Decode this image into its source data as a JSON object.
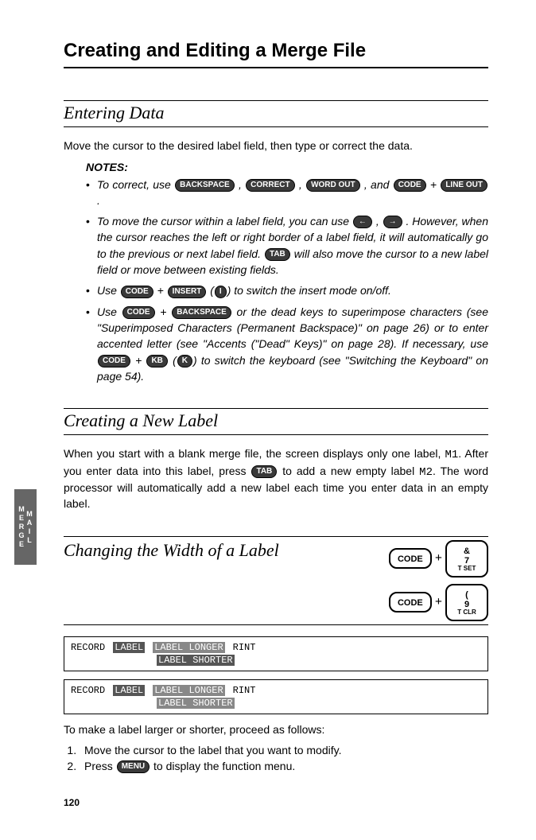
{
  "page": {
    "main_title": "Creating and Editing a Merge File",
    "side_tab": "MAIL MERGE",
    "page_number": "120"
  },
  "section1": {
    "title": "Entering Data",
    "intro": "Move the cursor to the desired label field, then type or correct the data.",
    "notes_heading": "NOTES:",
    "bullets": {
      "b1_pre": "To correct, use ",
      "b1_mid1": " , ",
      "b1_mid2": " , ",
      "b1_mid3": " , and ",
      "b1_mid4": " + ",
      "b1_end": " .",
      "b2_pre": "To move the cursor within a label field, you can use ",
      "b2_mid1": " , ",
      "b2_mid2": " . However, when the cursor reaches the left or right border of a label field, it will automatically go to the previous or next label field. ",
      "b2_end": " will also move the cursor to a new label field or move between existing fields.",
      "b3_pre": "Use ",
      "b3_mid1": " + ",
      "b3_mid2": " (",
      "b3_mid3": ") to switch the insert mode on/off.",
      "b4_pre": "Use ",
      "b4_mid1": " + ",
      "b4_mid2": " or the dead keys to superimpose characters (see \"Superimposed Characters (Permanent Backspace)\" on page 26) or to enter accented letter (see \"Accents (\"Dead\" Keys)\" on page 28). If necessary, use ",
      "b4_mid3": " + ",
      "b4_mid4": " (",
      "b4_mid5": ") to switch the keyboard (see \"Switching the Keyboard\" on page 54)."
    },
    "keys": {
      "backspace": "BACKSPACE",
      "correct": "CORRECT",
      "wordout": "WORD OUT",
      "code": "CODE",
      "lineout": "LINE OUT",
      "left": "←",
      "right": "→",
      "tab": "TAB",
      "insert": "INSERT",
      "i": "I",
      "kb": "KB",
      "k": "K"
    }
  },
  "section2": {
    "title": "Creating a New Label",
    "body_pre": "When you start with a blank merge file, the screen displays only one label, ",
    "body_m1": "M1",
    "body_mid1": ". After you enter data into this label, press ",
    "body_mid2": " to add a new empty label ",
    "body_m2": "M2",
    "body_end": ". The word processor will automatically add a new label each time you enter data in an empty label.",
    "key_tab": "TAB"
  },
  "section3": {
    "title": "Changing the Width of a Label",
    "big_keys": {
      "code": "CODE",
      "amp": "&",
      "seven": "7",
      "tset": "T SET",
      "nine": "9",
      "tclr": "T CLR"
    },
    "record1": {
      "col1": "RECORD",
      "col2": "LABEL",
      "col3": "LABEL LONGER",
      "col4": "RINT",
      "line2": "LABEL SHORTER"
    },
    "record2": {
      "col1": "RECORD",
      "col2": "LABEL",
      "col3": "LABEL LONGER",
      "col4": "RINT",
      "line2": "LABEL SHORTER"
    },
    "outro": "To make a label larger or shorter, proceed as follows:",
    "steps": {
      "s1": "Move the cursor to the label that you want to modify.",
      "s2_pre": "Press ",
      "s2_end": " to display the function menu.",
      "menu_key": "MENU"
    }
  }
}
